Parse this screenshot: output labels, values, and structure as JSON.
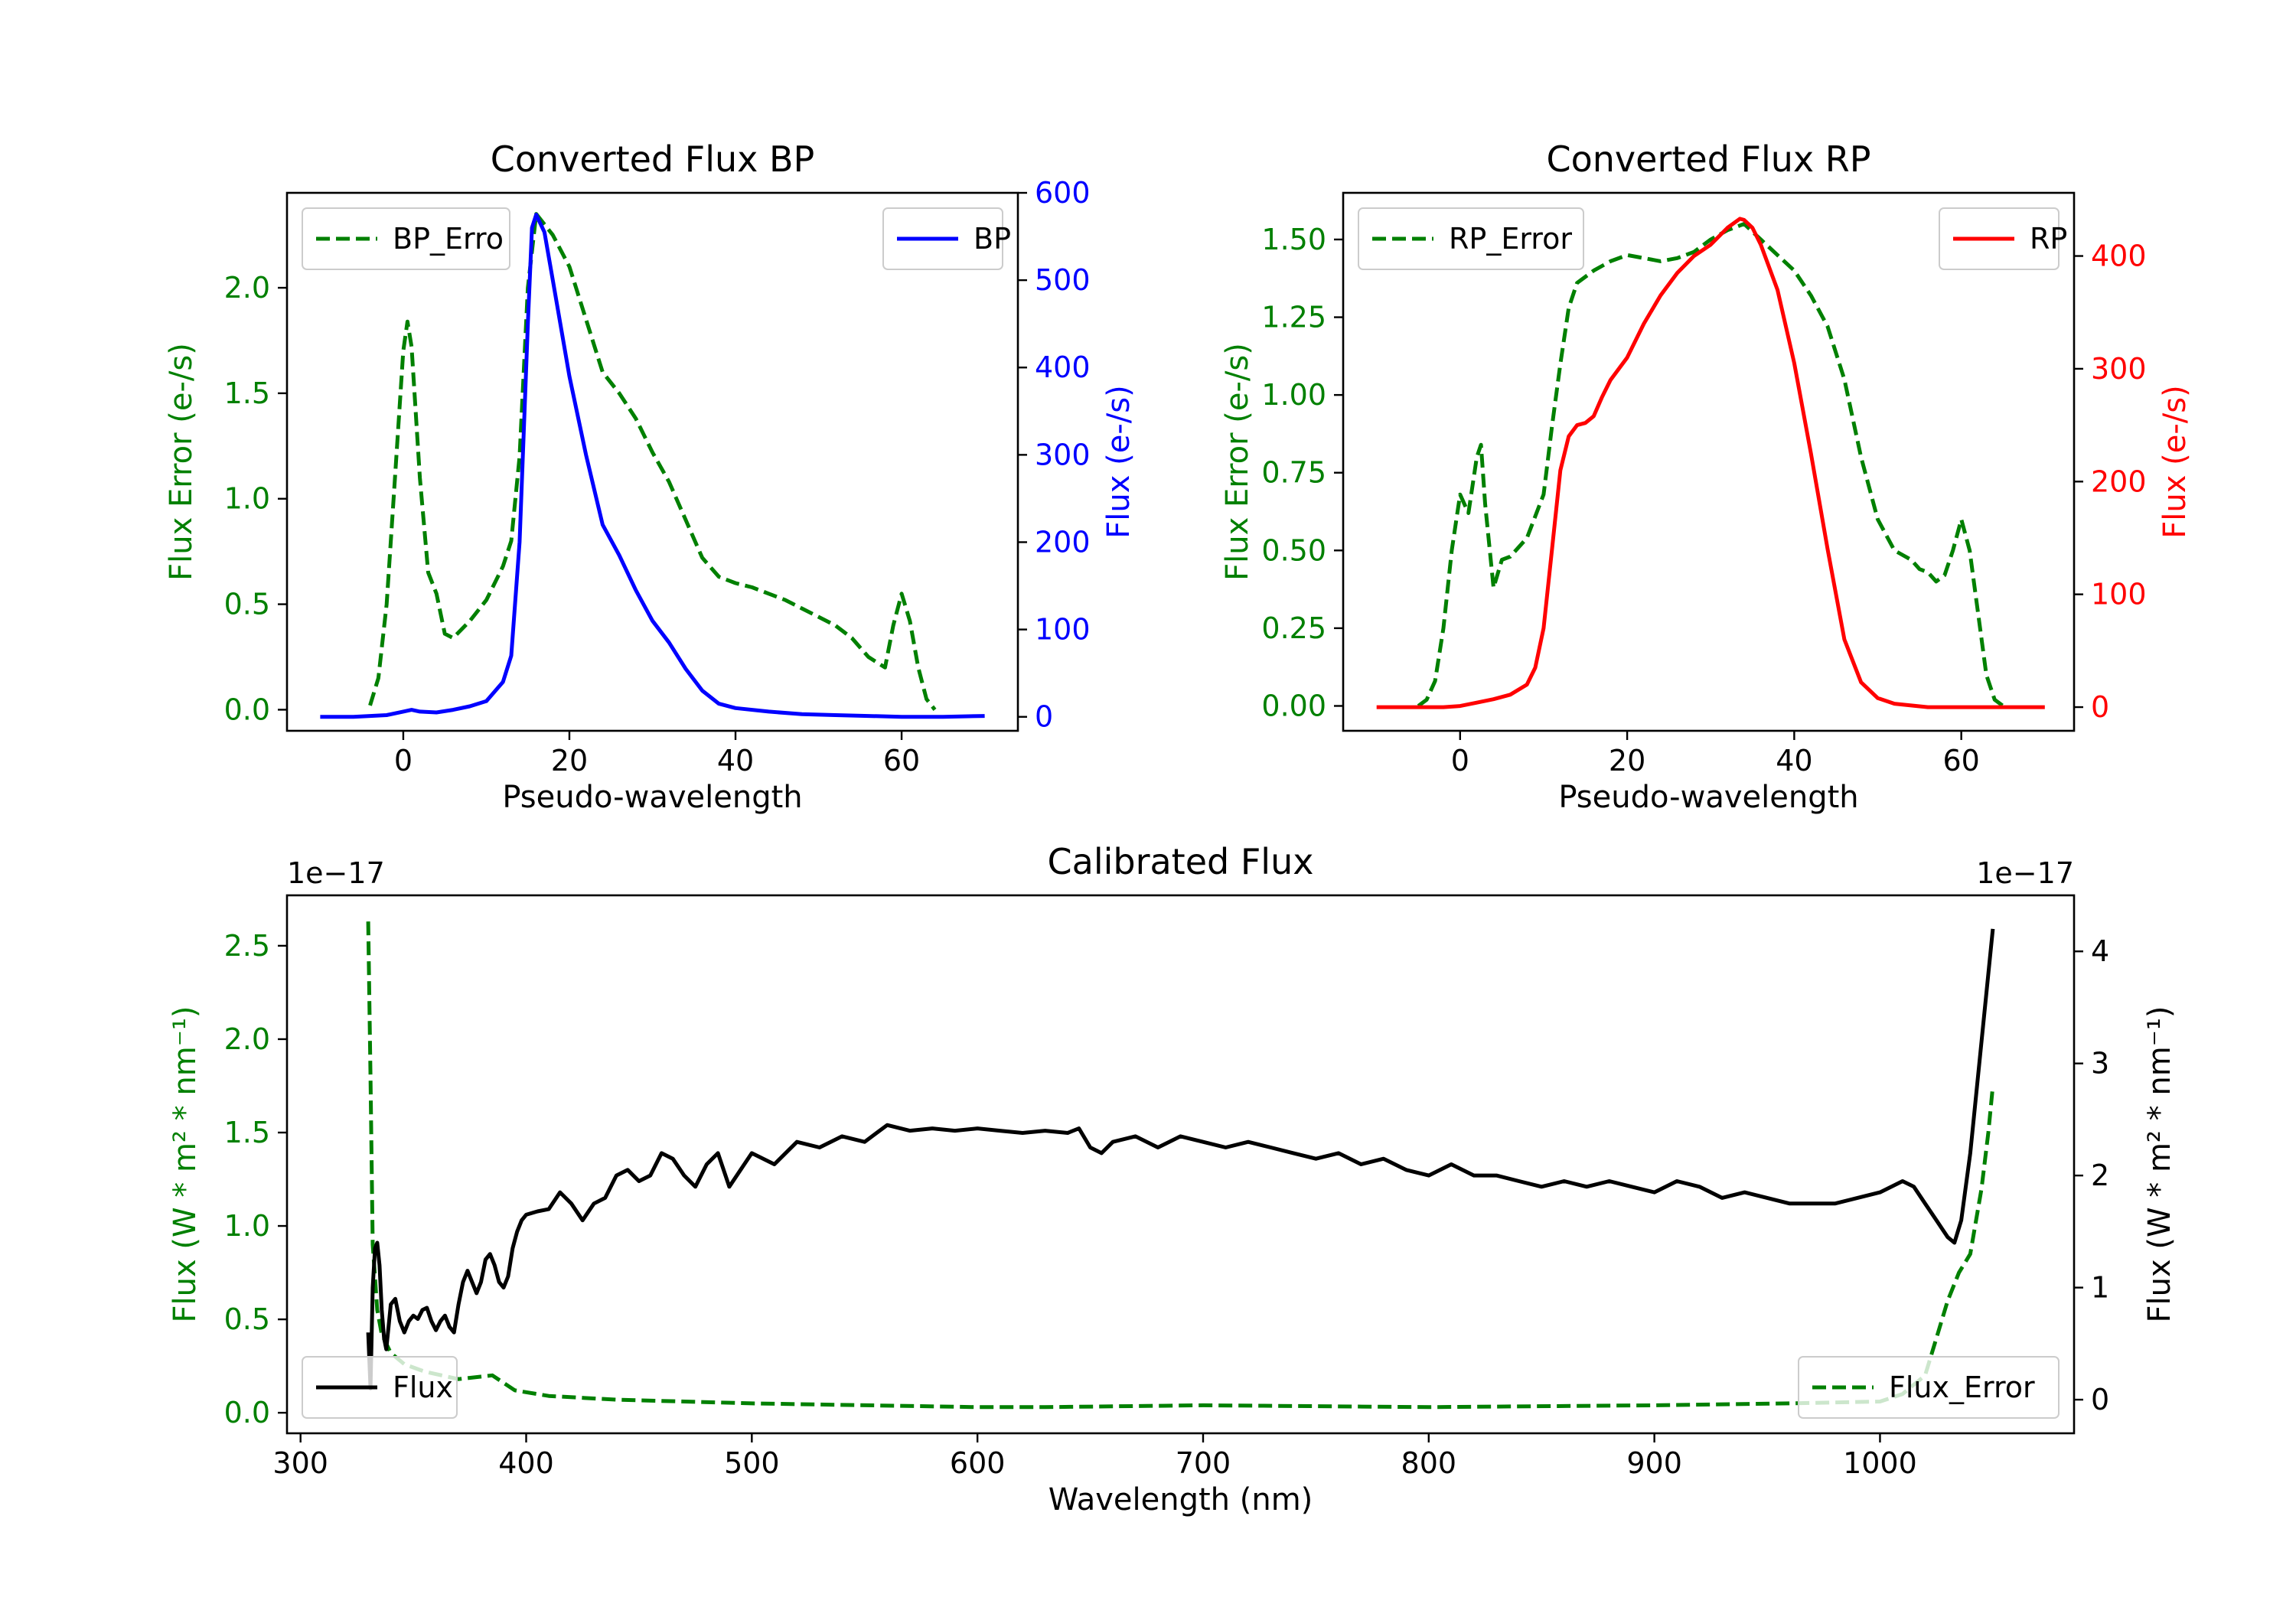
{
  "figure": {
    "colors": {
      "green": "#008000",
      "blue": "#0000ff",
      "red": "#ff0000",
      "black": "#000000"
    }
  },
  "chart_data": [
    {
      "id": "bp",
      "type": "line",
      "title": "Converted Flux BP",
      "xlabel": "Pseudo-wavelength",
      "ylabel_left": "Flux Error (e-/s)",
      "ylabel_right": "Flux (e-/s)",
      "xlim": [
        -14,
        74
      ],
      "ylim_left": [
        -0.1,
        2.45
      ],
      "ylim_right": [
        -16,
        600
      ],
      "xticks": [
        0,
        20,
        40,
        60
      ],
      "yticks_left": [
        0.0,
        0.5,
        1.0,
        1.5,
        2.0
      ],
      "yticks_right": [
        0,
        100,
        200,
        300,
        400,
        500,
        600
      ],
      "legend_left": {
        "label": "BP_Erro",
        "position": "upper-left"
      },
      "legend_right": {
        "label": "BP",
        "position": "upper-right"
      },
      "series": [
        {
          "name": "BP_Error",
          "axis": "left",
          "style": "dashed",
          "color": "#008000",
          "x": [
            -4,
            -3,
            -2,
            -1,
            0,
            0.5,
            1,
            2,
            3,
            4,
            5,
            6,
            8,
            10,
            12,
            13,
            14,
            15,
            16,
            18,
            20,
            22,
            24,
            26,
            28,
            30,
            32,
            34,
            36,
            38,
            40,
            42,
            44,
            46,
            48,
            50,
            52,
            54,
            56,
            58,
            59,
            60,
            61,
            62,
            63,
            64
          ],
          "y": [
            0.02,
            0.15,
            0.5,
            1.1,
            1.7,
            1.84,
            1.72,
            1.1,
            0.65,
            0.55,
            0.36,
            0.34,
            0.42,
            0.52,
            0.68,
            0.8,
            1.2,
            2.0,
            2.35,
            2.25,
            2.1,
            1.85,
            1.6,
            1.5,
            1.38,
            1.22,
            1.08,
            0.9,
            0.72,
            0.63,
            0.6,
            0.58,
            0.55,
            0.52,
            0.48,
            0.44,
            0.4,
            0.34,
            0.25,
            0.2,
            0.4,
            0.55,
            0.42,
            0.2,
            0.05,
            0.0
          ]
        },
        {
          "name": "BP",
          "axis": "right",
          "style": "solid",
          "color": "#0000ff",
          "x": [
            -10,
            -6,
            -2,
            0,
            1,
            2,
            4,
            6,
            8,
            10,
            12,
            13,
            14,
            15,
            15.5,
            16,
            17,
            18,
            20,
            22,
            24,
            26,
            28,
            30,
            32,
            34,
            36,
            38,
            40,
            44,
            48,
            52,
            56,
            60,
            65,
            70
          ],
          "y": [
            0,
            0,
            2,
            6,
            8,
            6,
            5,
            8,
            12,
            18,
            40,
            70,
            200,
            450,
            560,
            575,
            555,
            500,
            390,
            300,
            220,
            185,
            145,
            110,
            85,
            55,
            30,
            15,
            10,
            6,
            3,
            2,
            1,
            0,
            0,
            1
          ]
        }
      ]
    },
    {
      "id": "rp",
      "type": "line",
      "title": "Converted Flux RP",
      "xlabel": "Pseudo-wavelength",
      "ylabel_left": "Flux Error (e-/s)",
      "ylabel_right": "Flux (e-/s)",
      "xlim": [
        -14,
        73.5
      ],
      "ylim_left": [
        -0.08,
        1.65
      ],
      "ylim_right": [
        -21,
        456
      ],
      "xticks": [
        0,
        20,
        40,
        60
      ],
      "yticks_left": [
        0.0,
        0.25,
        0.5,
        0.75,
        1.0,
        1.25,
        1.5
      ],
      "yticks_right": [
        0,
        100,
        200,
        300,
        400
      ],
      "legend_left": {
        "label": "RP_Error",
        "position": "upper-left"
      },
      "legend_right": {
        "label": "RP",
        "position": "upper-right"
      },
      "series": [
        {
          "name": "RP_Error",
          "axis": "left",
          "style": "dashed",
          "color": "#008000",
          "x": [
            -5,
            -4,
            -3,
            -2,
            -1,
            0,
            1,
            2,
            2.5,
            3,
            4,
            5,
            6,
            8,
            10,
            11,
            12,
            13,
            14,
            16,
            18,
            20,
            22,
            24,
            26,
            28,
            30,
            32,
            34,
            36,
            38,
            40,
            42,
            44,
            46,
            48,
            50,
            52,
            54,
            55,
            56,
            57,
            58,
            59,
            60,
            61,
            62,
            63,
            64,
            65
          ],
          "y": [
            0.0,
            0.02,
            0.08,
            0.25,
            0.5,
            0.68,
            0.62,
            0.8,
            0.84,
            0.65,
            0.38,
            0.47,
            0.48,
            0.54,
            0.68,
            0.9,
            1.1,
            1.28,
            1.36,
            1.4,
            1.43,
            1.45,
            1.44,
            1.43,
            1.44,
            1.46,
            1.5,
            1.53,
            1.55,
            1.5,
            1.45,
            1.4,
            1.32,
            1.22,
            1.05,
            0.8,
            0.6,
            0.5,
            0.47,
            0.44,
            0.43,
            0.4,
            0.42,
            0.5,
            0.6,
            0.5,
            0.3,
            0.1,
            0.02,
            0.0
          ]
        },
        {
          "name": "RP",
          "axis": "right",
          "style": "solid",
          "color": "#ff0000",
          "x": [
            -10,
            -6,
            -2,
            0,
            2,
            4,
            6,
            8,
            9,
            10,
            11,
            12,
            13,
            14,
            15,
            16,
            17,
            18,
            20,
            22,
            24,
            26,
            28,
            30,
            32,
            33.5,
            34,
            35,
            36,
            38,
            40,
            42,
            44,
            46,
            48,
            50,
            52,
            56,
            60,
            65,
            70
          ],
          "y": [
            0,
            0,
            0,
            1,
            4,
            7,
            11,
            20,
            35,
            70,
            140,
            210,
            240,
            250,
            252,
            258,
            275,
            290,
            310,
            340,
            365,
            385,
            400,
            410,
            425,
            433,
            432,
            425,
            410,
            370,
            305,
            225,
            140,
            60,
            22,
            8,
            3,
            0,
            0,
            0,
            0
          ]
        }
      ]
    },
    {
      "id": "calibrated",
      "type": "line",
      "title": "Calibrated Flux",
      "xlabel": "Wavelength (nm)",
      "ylabel_left": "Flux (W * m² * nm⁻¹)",
      "ylabel_right": "Flux (W * m² * nm⁻¹)",
      "offset_left": "1e−17",
      "offset_right": "1e−17",
      "xlim": [
        294,
        1086
      ],
      "ylim_left": [
        -0.11,
        2.77
      ],
      "ylim_right": [
        -0.3,
        4.5
      ],
      "xticks": [
        300,
        400,
        500,
        600,
        700,
        800,
        900,
        1000
      ],
      "yticks_left": [
        0.0,
        0.5,
        1.0,
        1.5,
        2.0,
        2.5
      ],
      "yticks_right": [
        0,
        1,
        2,
        3,
        4
      ],
      "legend_left": {
        "label": "Flux",
        "position": "lower-left"
      },
      "legend_right": {
        "label": "Flux_Error",
        "position": "lower-right"
      },
      "series": [
        {
          "name": "Flux_Error",
          "axis": "left",
          "style": "dashed",
          "color": "#008000",
          "x": [
            330,
            331,
            332,
            334,
            336,
            340,
            346,
            355,
            370,
            385,
            395,
            410,
            440,
            500,
            600,
            630,
            700,
            800,
            900,
            960,
            1000,
            1010,
            1020,
            1025,
            1030,
            1035,
            1040,
            1045,
            1048,
            1050
          ],
          "y": [
            2.63,
            1.8,
            0.9,
            0.55,
            0.42,
            0.32,
            0.26,
            0.22,
            0.18,
            0.2,
            0.12,
            0.09,
            0.07,
            0.05,
            0.03,
            0.03,
            0.04,
            0.03,
            0.04,
            0.05,
            0.06,
            0.1,
            0.2,
            0.4,
            0.6,
            0.75,
            0.85,
            1.2,
            1.5,
            1.75
          ]
        },
        {
          "name": "Flux",
          "axis": "right",
          "style": "solid",
          "color": "#000000",
          "x": [
            330,
            331,
            332,
            333,
            334,
            335,
            336,
            337,
            338,
            339,
            340,
            342,
            344,
            346,
            348,
            350,
            352,
            354,
            356,
            358,
            360,
            362,
            364,
            366,
            368,
            370,
            372,
            374,
            376,
            378,
            380,
            382,
            384,
            386,
            388,
            390,
            392,
            394,
            396,
            398,
            400,
            405,
            410,
            415,
            420,
            425,
            430,
            435,
            440,
            445,
            450,
            455,
            460,
            465,
            470,
            475,
            480,
            485,
            490,
            495,
            500,
            510,
            520,
            530,
            540,
            550,
            560,
            570,
            580,
            590,
            600,
            610,
            620,
            630,
            640,
            645,
            650,
            655,
            660,
            670,
            680,
            690,
            700,
            710,
            720,
            730,
            740,
            750,
            760,
            770,
            780,
            790,
            800,
            810,
            820,
            830,
            840,
            850,
            860,
            870,
            880,
            890,
            900,
            910,
            920,
            930,
            940,
            950,
            960,
            970,
            980,
            990,
            1000,
            1010,
            1015,
            1020,
            1025,
            1030,
            1033,
            1036,
            1040,
            1044,
            1048,
            1050
          ],
          "y": [
            0.6,
            0.1,
            1.0,
            1.35,
            1.4,
            1.2,
            0.8,
            0.55,
            0.45,
            0.65,
            0.85,
            0.9,
            0.7,
            0.6,
            0.7,
            0.75,
            0.72,
            0.8,
            0.82,
            0.7,
            0.62,
            0.7,
            0.75,
            0.65,
            0.6,
            0.85,
            1.05,
            1.15,
            1.05,
            0.95,
            1.05,
            1.25,
            1.3,
            1.2,
            1.05,
            1.0,
            1.1,
            1.35,
            1.5,
            1.6,
            1.65,
            1.68,
            1.7,
            1.85,
            1.75,
            1.6,
            1.75,
            1.8,
            2.0,
            2.05,
            1.95,
            2.0,
            2.2,
            2.15,
            2.0,
            1.9,
            2.1,
            2.2,
            1.9,
            2.05,
            2.2,
            2.1,
            2.3,
            2.25,
            2.35,
            2.3,
            2.45,
            2.4,
            2.42,
            2.4,
            2.42,
            2.4,
            2.38,
            2.4,
            2.38,
            2.42,
            2.25,
            2.2,
            2.3,
            2.35,
            2.25,
            2.35,
            2.3,
            2.25,
            2.3,
            2.25,
            2.2,
            2.15,
            2.2,
            2.1,
            2.15,
            2.05,
            2.0,
            2.1,
            2.0,
            2.0,
            1.95,
            1.9,
            1.95,
            1.9,
            1.95,
            1.9,
            1.85,
            1.95,
            1.9,
            1.8,
            1.85,
            1.8,
            1.75,
            1.75,
            1.75,
            1.8,
            1.85,
            1.95,
            1.9,
            1.75,
            1.6,
            1.45,
            1.4,
            1.6,
            2.2,
            3.0,
            3.8,
            4.2
          ]
        }
      ]
    }
  ]
}
